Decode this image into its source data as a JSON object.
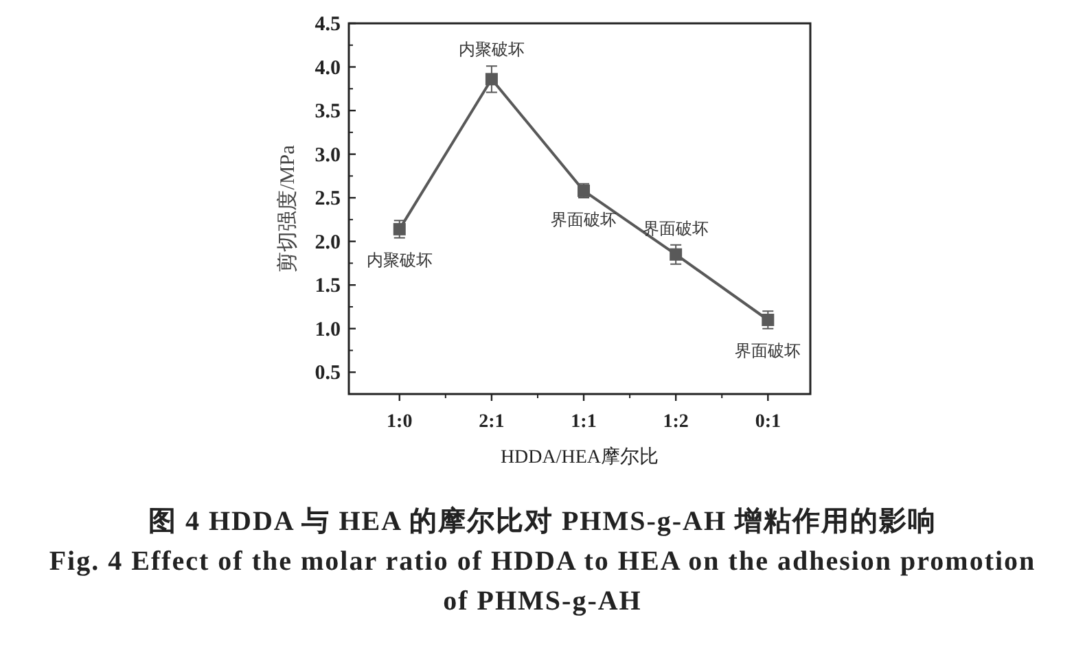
{
  "chart_data": {
    "type": "line",
    "xlabel": "HDDA/HEA摩尔比",
    "ylabel": "剪切强度/MPa",
    "categories": [
      "1:0",
      "2:1",
      "1:1",
      "1:2",
      "0:1"
    ],
    "series": [
      {
        "color": "#595959",
        "values": [
          2.14,
          3.86,
          2.58,
          1.85,
          1.1
        ],
        "errors": [
          0.1,
          0.15,
          0.08,
          0.11,
          0.1
        ]
      }
    ],
    "ylim": [
      0.25,
      4.5
    ],
    "yticks": [
      {
        "value": 0.5,
        "label": "0.5"
      },
      {
        "value": 1,
        "label": "1.0"
      },
      {
        "value": 1.5,
        "label": "1.5"
      },
      {
        "value": 2,
        "label": "2.0"
      },
      {
        "value": 2.5,
        "label": "2.5"
      },
      {
        "value": 3,
        "label": "3.0"
      },
      {
        "value": 3.5,
        "label": "3.5"
      },
      {
        "value": 4,
        "label": "4.0"
      },
      {
        "value": 4.5,
        "label": "4.5"
      }
    ],
    "marker": "square",
    "line_style": "solid",
    "grid": false,
    "annotations": [
      {
        "text": "内聚破坏",
        "x": "1:0",
        "y": 2.14
      },
      {
        "text": "内聚破坏",
        "x": "2:1",
        "y": 3.86
      },
      {
        "text": "界面破坏",
        "x": "1:1",
        "y": 2.58
      },
      {
        "text": "界面破坏",
        "x": "1:2",
        "y": 1.85
      },
      {
        "text": "界面破坏",
        "x": "0:1",
        "y": 1.1
      },
      "图 4   HDDA 与 HEA 的摩尔比对 PHMS-g-AH 增粘作用的影响",
      "Fig. 4   Effect of the molar ratio of HDDA to HEA on the adhesion promotion of PHMS-g-AH"
    ]
  }
}
